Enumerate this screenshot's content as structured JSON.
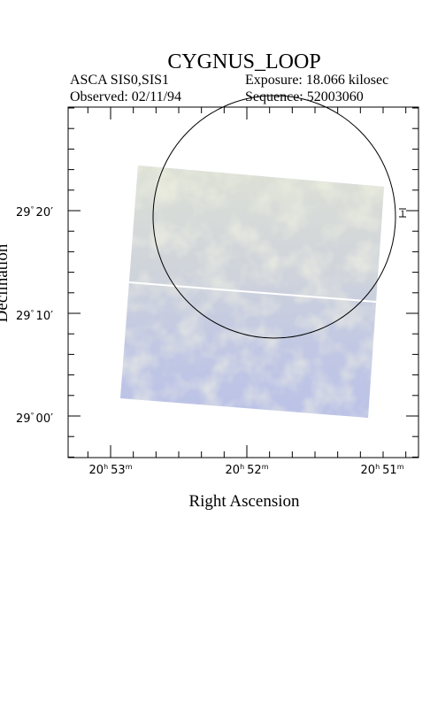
{
  "header": {
    "title": "CYGNUS_LOOP",
    "instrument": "ASCA SIS0,SIS1",
    "exposure": "Exposure: 18.066 kilosec",
    "observed": "Observed: 02/11/94",
    "sequence": "Sequence: 52003060"
  },
  "axes": {
    "xlabel": "Right Ascension",
    "ylabel": "Declination",
    "x_ticks": [
      {
        "h": "20",
        "hs": "h",
        "m": "53",
        "ms": "m"
      },
      {
        "h": "20",
        "hs": "h",
        "m": "52",
        "ms": "m"
      },
      {
        "h": "20",
        "hs": "h",
        "m": "51",
        "ms": "m"
      }
    ],
    "y_ticks": [
      {
        "deg": "29",
        "ds": "°",
        "min": "20",
        "ms": "′"
      },
      {
        "deg": "29",
        "ds": "°",
        "min": "10",
        "ms": "′"
      },
      {
        "deg": "29",
        "ds": "°",
        "min": "00",
        "ms": "′"
      }
    ]
  },
  "image": {
    "colors": {
      "base": "#bcc3e6",
      "yellow": "#e7e8c8",
      "blue": "#a9b2e3",
      "circle": "#000000"
    }
  },
  "marker": {
    "label": "1"
  }
}
